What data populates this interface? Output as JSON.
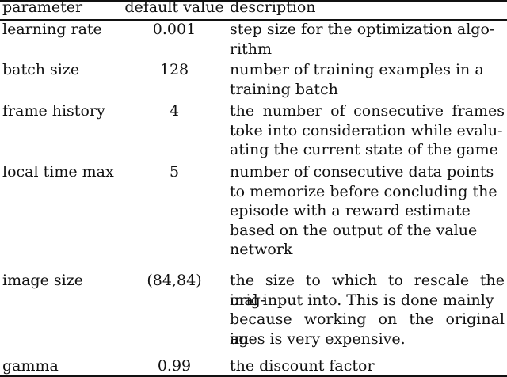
{
  "headers": {
    "parameter": "parameter",
    "default_value": "default value",
    "description": "description"
  },
  "rows": [
    {
      "parameter": "learning rate",
      "default": "0.001",
      "description_lines": [
        "step size for the optimization algo-",
        "rithm"
      ]
    },
    {
      "parameter": "batch size",
      "default": "128",
      "description_lines": [
        "number of training examples in a",
        "training batch"
      ]
    },
    {
      "parameter": "frame history",
      "default": "4",
      "description_lines": [
        "the number of consecutive frames to",
        "take into consideration while evalu-",
        "ating the current state of the game"
      ]
    },
    {
      "parameter": "local time max",
      "default": "5",
      "description_lines": [
        "number of consecutive data points",
        "to memorize before concluding the",
        "episode with a reward estimate",
        "based on the output of the value",
        "network"
      ]
    },
    {
      "parameter": "image size",
      "default": "(84,84)",
      "description_lines": [
        "the size to which to rescale the orig-",
        "inal input into. This is done mainly",
        "because working on the original im-",
        "ages is very expensive."
      ]
    },
    {
      "parameter": "gamma",
      "default": "0.99",
      "description_lines": [
        "the discount factor"
      ]
    }
  ]
}
